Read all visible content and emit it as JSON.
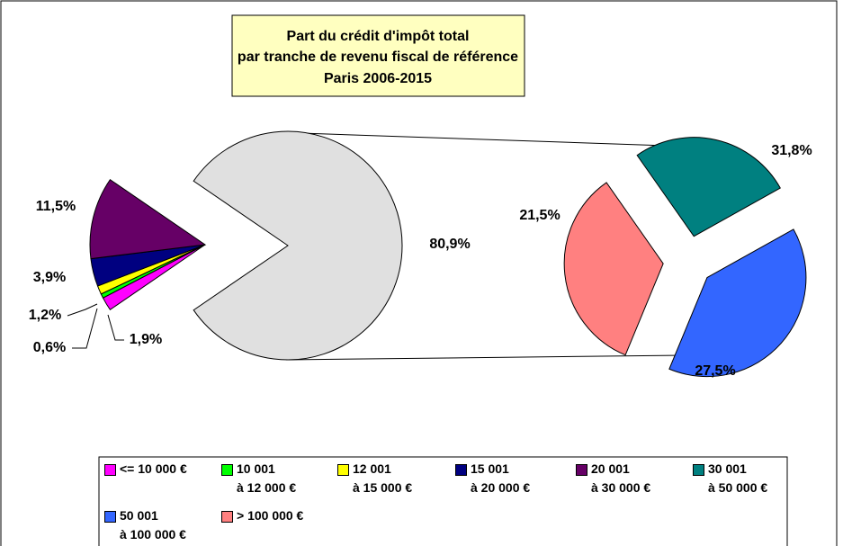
{
  "chart_data": {
    "type": "pie-of-pie",
    "title": [
      "Part du crédit d'impôt total",
      "par tranche de revenu fiscal de référence",
      "Paris 2006-2015"
    ],
    "categories": [
      "<= 10 000 €",
      "10 001\nà 12 000 €",
      "12 001\nà 15 000 €",
      "15 001\nà 20 000 €",
      "20 001\nà 30 000 €",
      "30 001\nà 50 000 €",
      "50 001\nà 100 000 €",
      "> 100 000 €"
    ],
    "colors": [
      "#ff00ff",
      "#00ff00",
      "#ffff00",
      "#000080",
      "#660066",
      "#008080",
      "#3366ff",
      "#ff8080"
    ],
    "values": [
      1.9,
      0.6,
      1.2,
      3.9,
      11.5,
      21.5,
      31.8,
      27.5
    ],
    "value_labels": [
      "1,9%",
      "0,6%",
      "1,2%",
      "3,9%",
      "11,5%",
      "21,5%",
      "31,8%",
      "27,5%"
    ],
    "secondary_from": 5,
    "other_value": 80.9,
    "other_label": "80,9%",
    "other_color": "#e0e0e0"
  }
}
